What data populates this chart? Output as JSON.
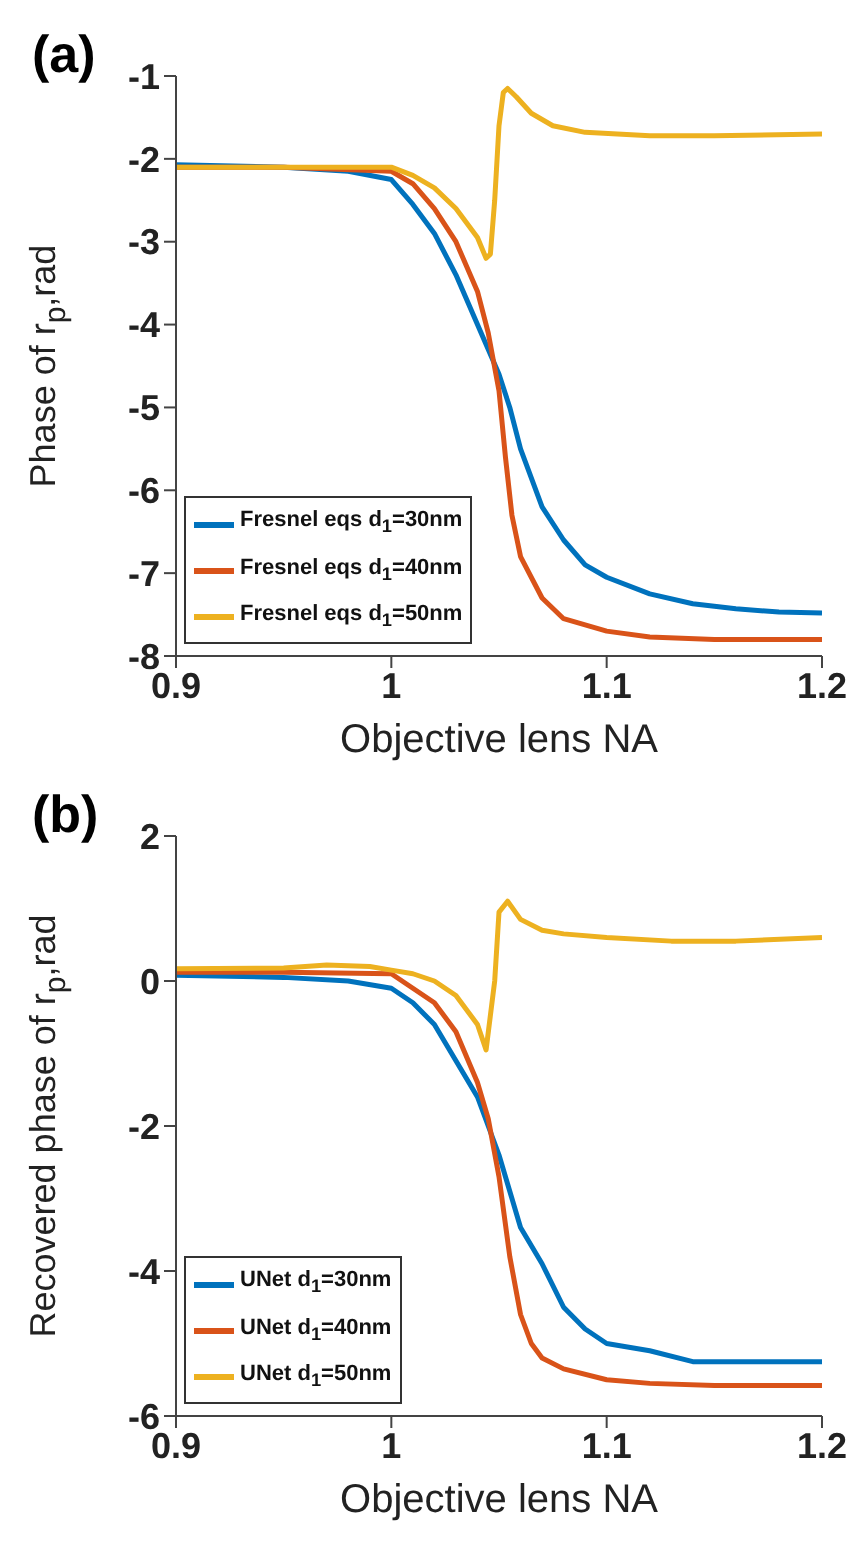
{
  "chart_data": [
    {
      "type": "line",
      "annotations": [
        "(a)"
      ],
      "xlabel": "Objective lens NA",
      "ylabel": "Phase of r$_{p}$,rad",
      "xlim": [
        0.9,
        1.2
      ],
      "xticks": [
        0.9,
        1,
        1.1,
        1.2
      ],
      "ylim": [
        -8,
        -1
      ],
      "yticks": [
        -8,
        -7,
        -6,
        -5,
        -4,
        -3,
        -2,
        -1
      ],
      "grid": false,
      "legend": "bottom left",
      "marker": "none",
      "line_style": "solid",
      "series": [
        {
          "name": "Fresnel eqs d$_{1}$=30nm",
          "color": "#0072bd",
          "x": [
            0.9,
            0.95,
            0.98,
            1.0,
            1.01,
            1.02,
            1.03,
            1.04,
            1.05,
            1.055,
            1.06,
            1.07,
            1.08,
            1.09,
            1.1,
            1.12,
            1.14,
            1.16,
            1.18,
            1.2
          ],
          "values": [
            -2.07,
            -2.1,
            -2.15,
            -2.25,
            -2.55,
            -2.9,
            -3.4,
            -4.0,
            -4.6,
            -5.0,
            -5.5,
            -6.2,
            -6.6,
            -6.9,
            -7.05,
            -7.25,
            -7.37,
            -7.43,
            -7.47,
            -7.48
          ]
        },
        {
          "name": "Fresnel eqs d$_{1}$=40nm",
          "color": "#d95319",
          "x": [
            0.9,
            0.95,
            1.0,
            1.01,
            1.02,
            1.03,
            1.04,
            1.045,
            1.05,
            1.053,
            1.056,
            1.06,
            1.07,
            1.08,
            1.1,
            1.12,
            1.15,
            1.2
          ],
          "values": [
            -2.1,
            -2.1,
            -2.15,
            -2.3,
            -2.6,
            -3.0,
            -3.6,
            -4.1,
            -4.8,
            -5.6,
            -6.3,
            -6.8,
            -7.3,
            -7.55,
            -7.7,
            -7.77,
            -7.8,
            -7.8
          ]
        },
        {
          "name": "Fresnel eqs d$_{1}$=50nm",
          "color": "#edb120",
          "x": [
            0.9,
            1.0,
            1.01,
            1.02,
            1.03,
            1.04,
            1.044,
            1.046,
            1.048,
            1.05,
            1.052,
            1.054,
            1.058,
            1.065,
            1.075,
            1.09,
            1.12,
            1.15,
            1.2
          ],
          "values": [
            -2.1,
            -2.1,
            -2.2,
            -2.35,
            -2.6,
            -2.95,
            -3.2,
            -3.15,
            -2.5,
            -1.6,
            -1.2,
            -1.15,
            -1.25,
            -1.45,
            -1.6,
            -1.68,
            -1.72,
            -1.72,
            -1.7
          ]
        }
      ]
    },
    {
      "type": "line",
      "annotations": [
        "(b)"
      ],
      "xlabel": "Objective lens NA",
      "ylabel": "Recovered phase of r$_{p}$,rad",
      "xlim": [
        0.9,
        1.2
      ],
      "xticks": [
        0.9,
        1,
        1.1,
        1.2
      ],
      "ylim": [
        -6,
        2
      ],
      "yticks": [
        -6,
        -4,
        -2,
        0,
        2
      ],
      "grid": false,
      "legend": "bottom left",
      "marker": "none",
      "line_style": "solid",
      "series": [
        {
          "name": "UNet d$_{1}$=30nm",
          "color": "#0072bd",
          "x": [
            0.9,
            0.95,
            0.98,
            1.0,
            1.01,
            1.02,
            1.03,
            1.04,
            1.045,
            1.05,
            1.055,
            1.06,
            1.07,
            1.08,
            1.09,
            1.1,
            1.12,
            1.14,
            1.16,
            1.2
          ],
          "values": [
            0.08,
            0.05,
            0.0,
            -0.1,
            -0.3,
            -0.6,
            -1.1,
            -1.6,
            -2.0,
            -2.4,
            -2.9,
            -3.4,
            -3.9,
            -4.5,
            -4.8,
            -5.0,
            -5.1,
            -5.25,
            -5.25,
            -5.25
          ]
        },
        {
          "name": "UNet d$_{1}$=40nm",
          "color": "#d95319",
          "x": [
            0.9,
            0.95,
            1.0,
            1.01,
            1.02,
            1.03,
            1.04,
            1.045,
            1.05,
            1.055,
            1.06,
            1.065,
            1.07,
            1.08,
            1.1,
            1.12,
            1.15,
            1.2
          ],
          "values": [
            0.12,
            0.12,
            0.1,
            -0.1,
            -0.3,
            -0.7,
            -1.4,
            -1.9,
            -2.7,
            -3.8,
            -4.6,
            -5.0,
            -5.2,
            -5.35,
            -5.5,
            -5.55,
            -5.58,
            -5.58
          ]
        },
        {
          "name": "UNet d$_{1}$=50nm",
          "color": "#edb120",
          "x": [
            0.9,
            0.95,
            0.97,
            0.99,
            1.0,
            1.01,
            1.02,
            1.03,
            1.04,
            1.044,
            1.048,
            1.05,
            1.054,
            1.06,
            1.07,
            1.08,
            1.1,
            1.13,
            1.16,
            1.2
          ],
          "values": [
            0.17,
            0.18,
            0.22,
            0.2,
            0.15,
            0.1,
            0.0,
            -0.2,
            -0.6,
            -0.95,
            0.0,
            0.95,
            1.1,
            0.85,
            0.7,
            0.65,
            0.6,
            0.55,
            0.55,
            0.6
          ]
        }
      ]
    }
  ]
}
